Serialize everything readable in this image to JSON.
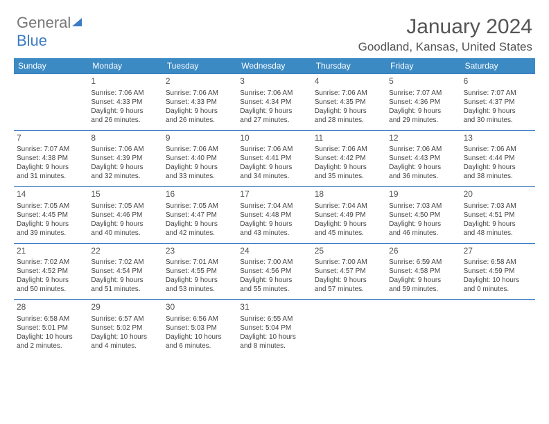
{
  "logo": {
    "part1": "General",
    "part2": "Blue"
  },
  "title": "January 2024",
  "location": "Goodland, Kansas, United States",
  "dayNames": [
    "Sunday",
    "Monday",
    "Tuesday",
    "Wednesday",
    "Thursday",
    "Friday",
    "Saturday"
  ],
  "colors": {
    "header_bg": "#3b8ac4",
    "header_text": "#ffffff",
    "rule": "#3b7bc4",
    "body_text": "#444444",
    "title_text": "#555555"
  },
  "startDayIndex": 1,
  "days": [
    {
      "n": 1,
      "sunrise": "7:06 AM",
      "sunset": "4:33 PM",
      "daylight": "9 hours and 26 minutes."
    },
    {
      "n": 2,
      "sunrise": "7:06 AM",
      "sunset": "4:33 PM",
      "daylight": "9 hours and 26 minutes."
    },
    {
      "n": 3,
      "sunrise": "7:06 AM",
      "sunset": "4:34 PM",
      "daylight": "9 hours and 27 minutes."
    },
    {
      "n": 4,
      "sunrise": "7:06 AM",
      "sunset": "4:35 PM",
      "daylight": "9 hours and 28 minutes."
    },
    {
      "n": 5,
      "sunrise": "7:07 AM",
      "sunset": "4:36 PM",
      "daylight": "9 hours and 29 minutes."
    },
    {
      "n": 6,
      "sunrise": "7:07 AM",
      "sunset": "4:37 PM",
      "daylight": "9 hours and 30 minutes."
    },
    {
      "n": 7,
      "sunrise": "7:07 AM",
      "sunset": "4:38 PM",
      "daylight": "9 hours and 31 minutes."
    },
    {
      "n": 8,
      "sunrise": "7:06 AM",
      "sunset": "4:39 PM",
      "daylight": "9 hours and 32 minutes."
    },
    {
      "n": 9,
      "sunrise": "7:06 AM",
      "sunset": "4:40 PM",
      "daylight": "9 hours and 33 minutes."
    },
    {
      "n": 10,
      "sunrise": "7:06 AM",
      "sunset": "4:41 PM",
      "daylight": "9 hours and 34 minutes."
    },
    {
      "n": 11,
      "sunrise": "7:06 AM",
      "sunset": "4:42 PM",
      "daylight": "9 hours and 35 minutes."
    },
    {
      "n": 12,
      "sunrise": "7:06 AM",
      "sunset": "4:43 PM",
      "daylight": "9 hours and 36 minutes."
    },
    {
      "n": 13,
      "sunrise": "7:06 AM",
      "sunset": "4:44 PM",
      "daylight": "9 hours and 38 minutes."
    },
    {
      "n": 14,
      "sunrise": "7:05 AM",
      "sunset": "4:45 PM",
      "daylight": "9 hours and 39 minutes."
    },
    {
      "n": 15,
      "sunrise": "7:05 AM",
      "sunset": "4:46 PM",
      "daylight": "9 hours and 40 minutes."
    },
    {
      "n": 16,
      "sunrise": "7:05 AM",
      "sunset": "4:47 PM",
      "daylight": "9 hours and 42 minutes."
    },
    {
      "n": 17,
      "sunrise": "7:04 AM",
      "sunset": "4:48 PM",
      "daylight": "9 hours and 43 minutes."
    },
    {
      "n": 18,
      "sunrise": "7:04 AM",
      "sunset": "4:49 PM",
      "daylight": "9 hours and 45 minutes."
    },
    {
      "n": 19,
      "sunrise": "7:03 AM",
      "sunset": "4:50 PM",
      "daylight": "9 hours and 46 minutes."
    },
    {
      "n": 20,
      "sunrise": "7:03 AM",
      "sunset": "4:51 PM",
      "daylight": "9 hours and 48 minutes."
    },
    {
      "n": 21,
      "sunrise": "7:02 AM",
      "sunset": "4:52 PM",
      "daylight": "9 hours and 50 minutes."
    },
    {
      "n": 22,
      "sunrise": "7:02 AM",
      "sunset": "4:54 PM",
      "daylight": "9 hours and 51 minutes."
    },
    {
      "n": 23,
      "sunrise": "7:01 AM",
      "sunset": "4:55 PM",
      "daylight": "9 hours and 53 minutes."
    },
    {
      "n": 24,
      "sunrise": "7:00 AM",
      "sunset": "4:56 PM",
      "daylight": "9 hours and 55 minutes."
    },
    {
      "n": 25,
      "sunrise": "7:00 AM",
      "sunset": "4:57 PM",
      "daylight": "9 hours and 57 minutes."
    },
    {
      "n": 26,
      "sunrise": "6:59 AM",
      "sunset": "4:58 PM",
      "daylight": "9 hours and 59 minutes."
    },
    {
      "n": 27,
      "sunrise": "6:58 AM",
      "sunset": "4:59 PM",
      "daylight": "10 hours and 0 minutes."
    },
    {
      "n": 28,
      "sunrise": "6:58 AM",
      "sunset": "5:01 PM",
      "daylight": "10 hours and 2 minutes."
    },
    {
      "n": 29,
      "sunrise": "6:57 AM",
      "sunset": "5:02 PM",
      "daylight": "10 hours and 4 minutes."
    },
    {
      "n": 30,
      "sunrise": "6:56 AM",
      "sunset": "5:03 PM",
      "daylight": "10 hours and 6 minutes."
    },
    {
      "n": 31,
      "sunrise": "6:55 AM",
      "sunset": "5:04 PM",
      "daylight": "10 hours and 8 minutes."
    }
  ],
  "labels": {
    "sunrise": "Sunrise:",
    "sunset": "Sunset:",
    "daylight": "Daylight:"
  }
}
